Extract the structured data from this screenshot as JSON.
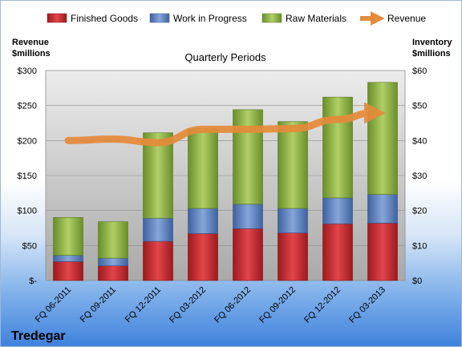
{
  "chart_data": {
    "type": "bar",
    "stacked": true,
    "title": "Quarterly Periods",
    "company": "Tredegar",
    "categories": [
      "FQ 06-2011",
      "FQ 09-2011",
      "FQ 12-2011",
      "FQ 03-2012",
      "FQ 06-2012",
      "FQ 09-2012",
      "FQ 12-2012",
      "FQ 03-2013"
    ],
    "left_axis": {
      "label_line1": "Revenue",
      "label_line2": "$millions",
      "range": [
        0,
        300
      ],
      "ticks": [
        "$-",
        "$50",
        "$100",
        "$150",
        "$200",
        "$250",
        "$300"
      ]
    },
    "right_axis": {
      "label_line1": "Inventory",
      "label_line2": "$millions",
      "range": [
        0,
        60
      ],
      "ticks": [
        "$0",
        "$10",
        "$20",
        "$30",
        "$40",
        "$50",
        "$60"
      ]
    },
    "series": [
      {
        "name": "Finished Goods",
        "axis": "right",
        "type": "bar",
        "color": "#c0262b",
        "values": [
          5.4,
          4.2,
          11.2,
          13.4,
          14.8,
          13.6,
          16.2,
          16.4
        ]
      },
      {
        "name": "Work in Progress",
        "axis": "right",
        "type": "bar",
        "color": "#5b82c0",
        "values": [
          1.8,
          2.2,
          6.6,
          7.2,
          7.0,
          7.0,
          7.4,
          8.2
        ]
      },
      {
        "name": "Raw Materials",
        "axis": "right",
        "type": "bar",
        "color": "#8cb043",
        "values": [
          10.8,
          10.4,
          24.4,
          22.8,
          27.0,
          24.8,
          28.8,
          32.0
        ]
      },
      {
        "name": "Revenue",
        "axis": "left",
        "type": "line",
        "color": "#e58b3a",
        "values": [
          200,
          202,
          197,
          216,
          216,
          217,
          230,
          242
        ]
      }
    ],
    "grid": true,
    "legend_position": "top"
  }
}
